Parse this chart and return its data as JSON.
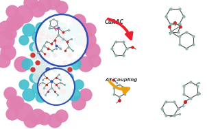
{
  "bg_color": "#ffffff",
  "cuaac_label": "CuAAC",
  "a3_label": "A3 Coupling",
  "arrow_red": "#e82030",
  "arrow_gold": "#e8a010",
  "atom_gray": "#90b0b0",
  "atom_bond": "#505050",
  "atom_red": "#cc2020",
  "atom_pink": "#e080b0",
  "atom_cyan": "#30b8cc",
  "atom_lightgray": "#a8baba",
  "atom_darkgray": "#687878",
  "circle_color": "#2244aa",
  "mof_pink": "#e080b0",
  "mof_cyan": "#40bece",
  "mof_gray": "#a8c0c0",
  "mof_white": "#d8e8e8",
  "mof_red": "#cc3030",
  "mof_blue": "#3050cc"
}
